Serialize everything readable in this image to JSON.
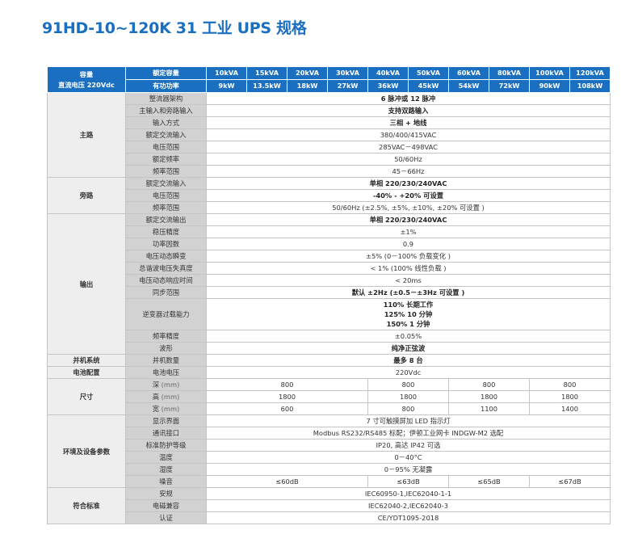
{
  "title": "91HD-10~120K 31 工业 UPS 规格",
  "header": {
    "cat_line1": "容量",
    "cat_line2": "直流电压 220Vdc",
    "row1_label": "额定容量",
    "row2_label": "有功功率",
    "ratings": [
      "10kVA",
      "15kVA",
      "20kVA",
      "30kVA",
      "40kVA",
      "50kVA",
      "60kVA",
      "80kVA",
      "100kVA",
      "120kVA"
    ],
    "power": [
      "9kW",
      "13.5kW",
      "18kW",
      "27kW",
      "36kW",
      "45kW",
      "54kW",
      "72kW",
      "90kW",
      "108kW"
    ]
  },
  "sections": {
    "main": {
      "name": "主路",
      "rows": [
        {
          "label": "整流器架构",
          "value": "6 脉冲或 12 脉冲"
        },
        {
          "label": "主输入和旁路输入",
          "value": "支持双路输入"
        },
        {
          "label": "输入方式",
          "value": "三相 + 地线"
        },
        {
          "label": "额定交流输入",
          "value": "380/400/415VAC"
        },
        {
          "label": "电压范围",
          "value": "285VAC－498VAC"
        },
        {
          "label": "额定频率",
          "value": "50/60Hz"
        },
        {
          "label": "频率范围",
          "value": "45－66Hz"
        }
      ]
    },
    "bypass": {
      "name": "旁路",
      "rows": [
        {
          "label": "额定交流输入",
          "value": "单相 220/230/240VAC"
        },
        {
          "label": "电压范围",
          "value": "-40% - +20% 可设置"
        },
        {
          "label": "频率范围",
          "value": "50/60Hz (±2.5%, ±5%, ±10%, ±20% 可设置 )"
        }
      ]
    },
    "output": {
      "name": "输出",
      "rows": [
        {
          "label": "额定交流输出",
          "value": "单相 220/230/240VAC"
        },
        {
          "label": "稳压精度",
          "value": "±1%"
        },
        {
          "label": "功率因数",
          "value": "0.9"
        },
        {
          "label": "电压动态瞬变",
          "value": "±5% (0－100% 负载变化 )"
        },
        {
          "label": "总谐波电压失真度",
          "value": "< 1% (100% 线性负载 )"
        },
        {
          "label": "电压动态响应时间",
          "value": "< 20ms"
        },
        {
          "label": "同步范围",
          "value": "默认 ±2Hz (±0.5－±3Hz 可设置 )"
        }
      ],
      "overload_label": "逆变器过载能力",
      "overload_lines": [
        "110% 长期工作",
        "125% 10 分钟",
        "150% 1 分钟"
      ],
      "rows2": [
        {
          "label": "频率精度",
          "value": "±0.05%"
        },
        {
          "label": "波形",
          "value": "纯净正弦波"
        }
      ]
    },
    "parallel": {
      "name": "并机系统",
      "label": "并机数量",
      "value": "最多 8 台"
    },
    "battery": {
      "name": "电池配置",
      "label": "电池电压",
      "value": "220Vdc"
    },
    "size": {
      "name": "尺寸",
      "unit": "(mm)",
      "depth_label": "深",
      "height_label": "高",
      "width_label": "宽",
      "depth": [
        "800",
        "800",
        "800",
        "800"
      ],
      "height": [
        "1800",
        "1800",
        "1800",
        "1800"
      ],
      "width": [
        "600",
        "800",
        "1100",
        "1400"
      ]
    },
    "env": {
      "name": "环境及设备参数",
      "rows": [
        {
          "label": "显示界面",
          "value": "7 寸可触摸屏加 LED 指示灯"
        },
        {
          "label": "通讯接口",
          "value": "Modbus RS232/RS485 标配；伊顿工业网卡 INDGW-M2 选配"
        },
        {
          "label": "标准防护等级",
          "value": "IP20, 高达 IP42 可选"
        },
        {
          "label": "温度",
          "value": "0－40°C"
        },
        {
          "label": "湿度",
          "value": "0－95% 无凝露"
        }
      ],
      "noise_label": "噪音",
      "noise": [
        "≤60dB",
        "≤63dB",
        "≤65dB",
        "≤67dB"
      ]
    },
    "standards": {
      "name": "符合标准",
      "rows": [
        {
          "label": "安规",
          "value": "IEC60950-1,IEC62040-1-1"
        },
        {
          "label": "电磁兼容",
          "value": "IEC62040-2,IEC62040-3"
        },
        {
          "label": "认证",
          "value": "CE/YDT1095-2018"
        }
      ]
    }
  }
}
